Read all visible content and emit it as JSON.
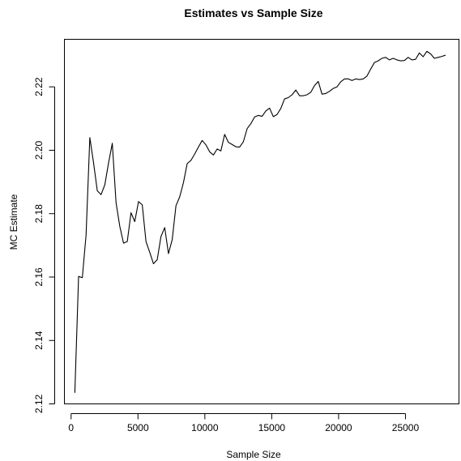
{
  "chart_data": {
    "type": "line",
    "title": "Estimates vs Sample Size",
    "xlabel": "Sample Size",
    "ylabel": "MC Estimate",
    "xlim": [
      -500,
      29000
    ],
    "ylim": [
      2.12,
      2.235
    ],
    "xticks": [
      {
        "value": 0,
        "label": "0"
      },
      {
        "value": 5000,
        "label": "5000"
      },
      {
        "value": 10000,
        "label": "10000"
      },
      {
        "value": 15000,
        "label": "15000"
      },
      {
        "value": 20000,
        "label": "20000"
      },
      {
        "value": 25000,
        "label": "25000"
      }
    ],
    "yticks": [
      {
        "value": 2.12,
        "label": "2.12"
      },
      {
        "value": 2.14,
        "label": "2.14"
      },
      {
        "value": 2.16,
        "label": "2.16"
      },
      {
        "value": 2.18,
        "label": "2.18"
      },
      {
        "value": 2.2,
        "label": "2.20"
      },
      {
        "value": 2.22,
        "label": "2.22"
      }
    ],
    "grid": false,
    "series": [
      {
        "color": "#000000",
        "x": [
          280,
          560,
          840,
          1120,
          1400,
          1680,
          1960,
          2240,
          2520,
          2800,
          3080,
          3360,
          3640,
          3920,
          4200,
          4480,
          4760,
          5040,
          5320,
          5600,
          5880,
          6160,
          6440,
          6720,
          7000,
          7280,
          7560,
          7840,
          8120,
          8400,
          8680,
          8960,
          9240,
          9520,
          9800,
          10080,
          10360,
          10640,
          10920,
          11200,
          11480,
          11760,
          12040,
          12320,
          12600,
          12880,
          13160,
          13440,
          13720,
          14000,
          14280,
          14560,
          14840,
          15120,
          15400,
          15680,
          15960,
          16240,
          16520,
          16800,
          17080,
          17360,
          17640,
          17920,
          18200,
          18480,
          18760,
          19040,
          19320,
          19600,
          19880,
          20160,
          20440,
          20720,
          21000,
          21280,
          21560,
          21840,
          22120,
          22400,
          22680,
          22960,
          23240,
          23520,
          23800,
          24080,
          24360,
          24640,
          24920,
          25200,
          25480,
          25760,
          26040,
          26320,
          26600,
          26880,
          27160,
          27440,
          27720,
          28000
        ],
        "y": [
          2.1235,
          2.1602,
          2.1598,
          2.1733,
          2.204,
          2.196,
          2.1872,
          2.186,
          2.1891,
          2.196,
          2.2022,
          2.1835,
          2.176,
          2.1707,
          2.1712,
          2.1803,
          2.1775,
          2.1838,
          2.1828,
          2.1712,
          2.1678,
          2.1642,
          2.1655,
          2.1728,
          2.1756,
          2.1674,
          2.1718,
          2.1825,
          2.1853,
          2.1898,
          2.1958,
          2.1968,
          2.1988,
          2.201,
          2.2031,
          2.2017,
          2.1995,
          2.1985,
          2.2004,
          2.1998,
          2.205,
          2.2025,
          2.2018,
          2.2011,
          2.201,
          2.2027,
          2.2068,
          2.2084,
          2.2105,
          2.211,
          2.2107,
          2.2124,
          2.2133,
          2.2106,
          2.2113,
          2.2132,
          2.2162,
          2.2166,
          2.2175,
          2.219,
          2.2172,
          2.2172,
          2.2175,
          2.2183,
          2.2204,
          2.2217,
          2.2177,
          2.2179,
          2.2186,
          2.2195,
          2.22,
          2.2216,
          2.2225,
          2.2225,
          2.222,
          2.2225,
          2.2223,
          2.2225,
          2.2234,
          2.2256,
          2.2277,
          2.2282,
          2.229,
          2.2293,
          2.2285,
          2.229,
          2.2285,
          2.2282,
          2.2283,
          2.2293,
          2.2285,
          2.2287,
          2.2307,
          2.2295,
          2.2312,
          2.2304,
          2.229,
          2.2293,
          2.2296,
          2.23
        ]
      }
    ]
  }
}
